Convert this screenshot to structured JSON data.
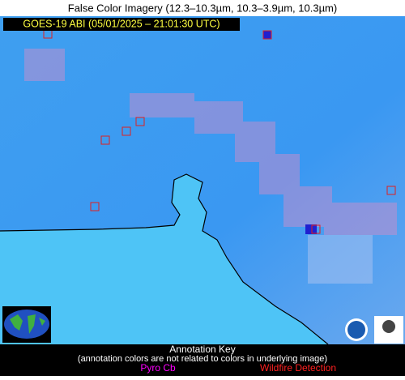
{
  "header": {
    "title": "False Color Imagery (12.3–10.3µm, 10.3–3.9µm, 10.3µm)"
  },
  "image": {
    "timestamp": "GOES-19 ABI (05/01/2025 – 21:01:30 UTC)"
  },
  "key": {
    "title": "Annotation Key",
    "note": "(annotation colors are not related to colors in underlying image)",
    "items": [
      {
        "label": "Pyro Cb",
        "color": "#ff00ff"
      },
      {
        "label": "Wildfire Detection",
        "color": "#ff2020"
      }
    ]
  }
}
